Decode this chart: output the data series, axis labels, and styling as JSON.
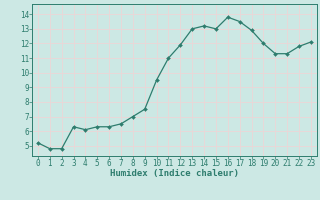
{
  "x": [
    0,
    1,
    2,
    3,
    4,
    5,
    6,
    7,
    8,
    9,
    10,
    11,
    12,
    13,
    14,
    15,
    16,
    17,
    18,
    19,
    20,
    21,
    22,
    23
  ],
  "y": [
    5.2,
    4.8,
    4.8,
    6.3,
    6.1,
    6.3,
    6.3,
    6.5,
    7.0,
    7.5,
    9.5,
    11.0,
    11.9,
    13.0,
    13.2,
    13.0,
    13.8,
    13.5,
    12.9,
    12.0,
    11.3,
    11.3,
    11.8,
    12.1
  ],
  "xlabel": "Humidex (Indice chaleur)",
  "xlim": [
    -0.5,
    23.5
  ],
  "ylim": [
    4.3,
    14.7
  ],
  "yticks": [
    5,
    6,
    7,
    8,
    9,
    10,
    11,
    12,
    13,
    14
  ],
  "xticks": [
    0,
    1,
    2,
    3,
    4,
    5,
    6,
    7,
    8,
    9,
    10,
    11,
    12,
    13,
    14,
    15,
    16,
    17,
    18,
    19,
    20,
    21,
    22,
    23
  ],
  "line_color": "#2e7d6e",
  "marker_color": "#2e7d6e",
  "bg_color": "#cce8e4",
  "grid_color": "#e8d8d8",
  "axes_color": "#2e7d6e",
  "label_fontsize": 6.5,
  "tick_fontsize": 5.5
}
